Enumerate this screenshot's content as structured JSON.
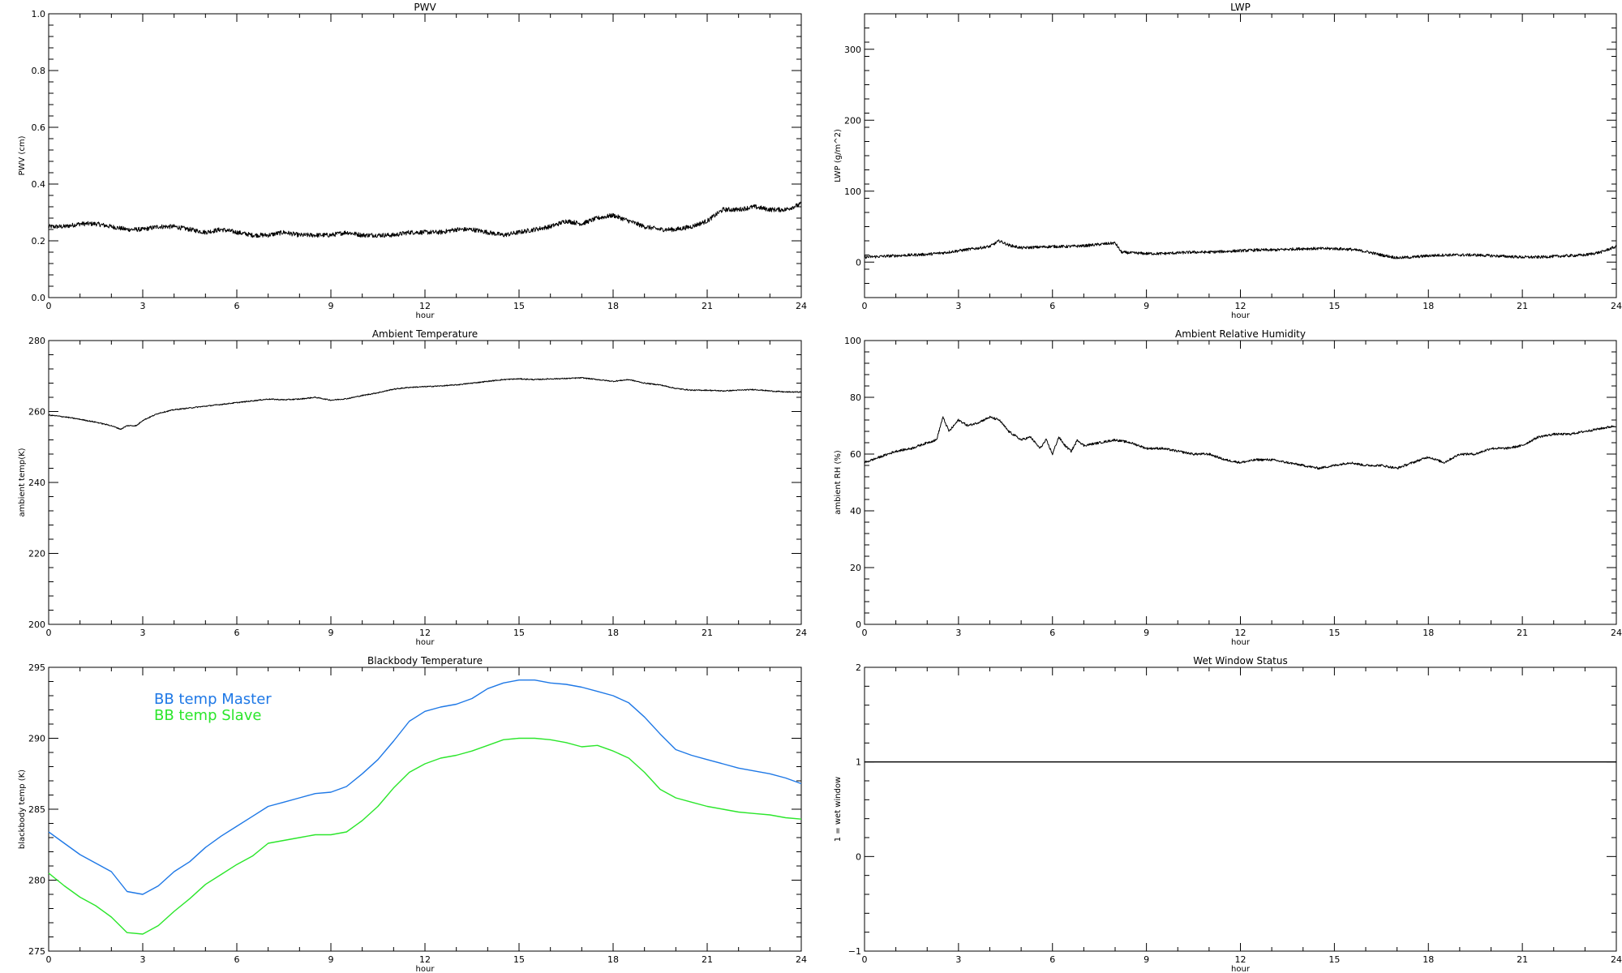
{
  "chart_data": [
    {
      "id": "pwv",
      "type": "line",
      "title": "PWV",
      "xlabel": "hour",
      "ylabel": "PWV (cm)",
      "xlim": [
        0,
        24
      ],
      "ylim": [
        0.0,
        1.0
      ],
      "xticks": [
        0,
        3,
        6,
        9,
        12,
        15,
        18,
        21,
        24
      ],
      "yticks": [
        0.0,
        0.2,
        0.4,
        0.6,
        0.8,
        1.0
      ],
      "ytick_labels": [
        "0.0",
        "0.2",
        "0.4",
        "0.6",
        "0.8",
        "1.0"
      ],
      "noise": 0.008,
      "series": [
        {
          "color": "#000000",
          "x": [
            0,
            0.5,
            1,
            1.5,
            2,
            2.5,
            3,
            3.5,
            4,
            4.5,
            5,
            5.5,
            6,
            6.5,
            7,
            7.5,
            8,
            8.5,
            9,
            9.5,
            10,
            10.5,
            11,
            11.5,
            12,
            12.5,
            13,
            13.5,
            14,
            14.5,
            15,
            15.5,
            16,
            16.5,
            17,
            17.5,
            18,
            18.5,
            19,
            19.5,
            20,
            20.5,
            21,
            21.5,
            22,
            22.5,
            23,
            23.5,
            24
          ],
          "y": [
            0.25,
            0.25,
            0.26,
            0.26,
            0.25,
            0.24,
            0.24,
            0.25,
            0.25,
            0.24,
            0.23,
            0.24,
            0.23,
            0.22,
            0.22,
            0.23,
            0.22,
            0.22,
            0.22,
            0.23,
            0.22,
            0.22,
            0.22,
            0.23,
            0.23,
            0.23,
            0.24,
            0.24,
            0.23,
            0.22,
            0.23,
            0.24,
            0.25,
            0.27,
            0.26,
            0.28,
            0.29,
            0.27,
            0.25,
            0.24,
            0.24,
            0.25,
            0.27,
            0.31,
            0.31,
            0.32,
            0.31,
            0.31,
            0.33
          ]
        }
      ]
    },
    {
      "id": "lwp",
      "type": "line",
      "title": "LWP",
      "xlabel": "hour",
      "ylabel": "LWP (g/m^2)",
      "xlim": [
        0,
        24
      ],
      "ylim": [
        -50,
        350
      ],
      "xticks": [
        0,
        3,
        6,
        9,
        12,
        15,
        18,
        21,
        24
      ],
      "yticks": [
        0,
        100,
        200,
        300
      ],
      "ytick_labels": [
        "0",
        "100",
        "200",
        "300"
      ],
      "noise": 2,
      "series": [
        {
          "color": "#000000",
          "x": [
            0,
            0.5,
            1,
            1.5,
            2,
            2.5,
            3,
            3.5,
            4,
            4.3,
            4.6,
            5,
            5.5,
            6,
            6.5,
            7,
            7.5,
            8,
            8.2,
            8.5,
            9,
            9.5,
            10,
            10.5,
            11,
            11.5,
            12,
            12.5,
            13,
            13.5,
            14,
            14.5,
            15,
            15.5,
            16,
            16.5,
            17,
            17.5,
            18,
            18.5,
            19,
            19.5,
            20,
            20.5,
            21,
            21.5,
            22,
            22.5,
            23,
            23.5,
            24
          ],
          "y": [
            7,
            8,
            9,
            10,
            11,
            13,
            16,
            19,
            22,
            30,
            24,
            20,
            21,
            22,
            22,
            23,
            25,
            27,
            14,
            13,
            12,
            12,
            13,
            14,
            14,
            15,
            16,
            17,
            17,
            18,
            19,
            19,
            19,
            18,
            15,
            10,
            6,
            7,
            9,
            10,
            10,
            10,
            9,
            8,
            7,
            7,
            8,
            9,
            10,
            14,
            22
          ]
        }
      ]
    },
    {
      "id": "ambient-temperature",
      "type": "line",
      "title": "Ambient Temperature",
      "xlabel": "hour",
      "ylabel": "ambient temp(K)",
      "xlim": [
        0,
        24
      ],
      "ylim": [
        200,
        280
      ],
      "xticks": [
        0,
        3,
        6,
        9,
        12,
        15,
        18,
        21,
        24
      ],
      "yticks": [
        200,
        220,
        240,
        260,
        280
      ],
      "ytick_labels": [
        "200",
        "220",
        "240",
        "260",
        "280"
      ],
      "noise": 0.15,
      "series": [
        {
          "color": "#000000",
          "x": [
            0,
            0.5,
            1,
            1.5,
            2,
            2.3,
            2.5,
            2.8,
            3,
            3.5,
            4,
            4.5,
            5,
            5.5,
            6,
            6.5,
            7,
            7.5,
            8,
            8.5,
            9,
            9.5,
            10,
            10.5,
            11,
            11.5,
            12,
            12.5,
            13,
            13.5,
            14,
            14.5,
            15,
            15.5,
            16,
            16.5,
            17,
            17.5,
            18,
            18.5,
            19,
            19.5,
            20,
            20.5,
            21,
            21.5,
            22,
            22.5,
            23,
            23.5,
            24
          ],
          "y": [
            259,
            258.5,
            257.8,
            257,
            256,
            255,
            256,
            256,
            257.5,
            259.5,
            260.5,
            261,
            261.5,
            262,
            262.5,
            263,
            263.5,
            263.3,
            263.5,
            264,
            263.2,
            263.6,
            264.5,
            265.3,
            266.3,
            266.8,
            267,
            267.2,
            267.5,
            268,
            268.5,
            269,
            269.2,
            269,
            269.2,
            269.3,
            269.5,
            269,
            268.5,
            269,
            268,
            267.5,
            266.5,
            266,
            266,
            265.8,
            266,
            266.2,
            265.8,
            265.5,
            265.5
          ]
        }
      ]
    },
    {
      "id": "ambient-relative-humidity",
      "type": "line",
      "title": "Ambient Relative Humidity",
      "xlabel": "hour",
      "ylabel": "ambient RH (%)",
      "xlim": [
        0,
        24
      ],
      "ylim": [
        0,
        100
      ],
      "xticks": [
        0,
        3,
        6,
        9,
        12,
        15,
        18,
        21,
        24
      ],
      "yticks": [
        0,
        20,
        40,
        60,
        80,
        100
      ],
      "ytick_labels": [
        "0",
        "20",
        "40",
        "60",
        "80",
        "100"
      ],
      "noise": 0.4,
      "series": [
        {
          "color": "#000000",
          "x": [
            0,
            0.5,
            1,
            1.5,
            2,
            2.3,
            2.5,
            2.7,
            3,
            3.3,
            3.6,
            4,
            4.3,
            4.6,
            5,
            5.3,
            5.6,
            5.8,
            6,
            6.2,
            6.4,
            6.6,
            6.8,
            7,
            7.5,
            8,
            8.5,
            9,
            9.5,
            10,
            10.5,
            11,
            11.5,
            12,
            12.5,
            13,
            13.5,
            14,
            14.5,
            15,
            15.5,
            16,
            16.5,
            17,
            17.5,
            18,
            18.5,
            19,
            19.5,
            20,
            20.5,
            21,
            21.5,
            22,
            22.5,
            23,
            23.5,
            24
          ],
          "y": [
            57,
            59,
            61,
            62,
            64,
            65,
            73,
            68,
            72,
            70,
            71,
            73,
            72,
            68,
            65,
            66,
            62,
            65,
            60,
            66,
            63,
            61,
            65,
            63,
            64,
            65,
            64,
            62,
            62,
            61,
            60,
            60,
            58,
            57,
            58,
            58,
            57,
            56,
            55,
            56,
            57,
            56,
            56,
            55,
            57,
            59,
            57,
            60,
            60,
            62,
            62,
            63,
            66,
            67,
            67,
            68,
            69,
            70
          ]
        }
      ]
    },
    {
      "id": "blackbody-temperature",
      "type": "line",
      "title": "Blackbody Temperature",
      "xlabel": "hour",
      "ylabel": "blackbody temp (K)",
      "xlim": [
        0,
        24
      ],
      "ylim": [
        275,
        295
      ],
      "xticks": [
        0,
        3,
        6,
        9,
        12,
        15,
        18,
        21,
        24
      ],
      "yticks": [
        275,
        280,
        285,
        290,
        295
      ],
      "ytick_labels": [
        "275",
        "280",
        "285",
        "290",
        "295"
      ],
      "noise": 0,
      "legend": "top-left",
      "series": [
        {
          "name": "BB temp Master",
          "color": "#1e78e6",
          "x": [
            0,
            0.5,
            1,
            1.5,
            2,
            2.5,
            3,
            3.5,
            4,
            4.5,
            5,
            5.5,
            6,
            6.5,
            7,
            7.5,
            8,
            8.5,
            9,
            9.5,
            10,
            10.5,
            11,
            11.5,
            12,
            12.5,
            13,
            13.5,
            14,
            14.5,
            15,
            15.5,
            16,
            16.5,
            17,
            17.5,
            18,
            18.5,
            19,
            19.5,
            20,
            20.5,
            21,
            21.5,
            22,
            22.5,
            23,
            23.5,
            24
          ],
          "y": [
            283.4,
            282.6,
            281.8,
            281.2,
            280.6,
            279.2,
            279.0,
            279.6,
            280.6,
            281.3,
            282.3,
            283.1,
            283.8,
            284.5,
            285.2,
            285.5,
            285.8,
            286.1,
            286.2,
            286.6,
            287.5,
            288.5,
            289.8,
            291.2,
            291.9,
            292.2,
            292.4,
            292.8,
            293.5,
            293.9,
            294.1,
            294.1,
            293.9,
            293.8,
            293.6,
            293.3,
            293.0,
            292.5,
            291.5,
            290.3,
            289.2,
            288.8,
            288.5,
            288.2,
            287.9,
            287.7,
            287.5,
            287.2,
            286.8
          ]
        },
        {
          "name": "BB temp Slave",
          "color": "#2be62b",
          "x": [
            0,
            0.5,
            1,
            1.5,
            2,
            2.5,
            3,
            3.5,
            4,
            4.5,
            5,
            5.5,
            6,
            6.5,
            7,
            7.5,
            8,
            8.5,
            9,
            9.5,
            10,
            10.5,
            11,
            11.5,
            12,
            12.5,
            13,
            13.5,
            14,
            14.5,
            15,
            15.5,
            16,
            16.5,
            17,
            17.5,
            18,
            18.5,
            19,
            19.5,
            20,
            20.5,
            21,
            21.5,
            22,
            22.5,
            23,
            23.5,
            24
          ],
          "y": [
            280.5,
            279.6,
            278.8,
            278.2,
            277.4,
            276.3,
            276.2,
            276.8,
            277.8,
            278.7,
            279.7,
            280.4,
            281.1,
            281.7,
            282.6,
            282.8,
            283.0,
            283.2,
            283.2,
            283.4,
            284.2,
            285.2,
            286.5,
            287.6,
            288.2,
            288.6,
            288.8,
            289.1,
            289.5,
            289.9,
            290.0,
            290.0,
            289.9,
            289.7,
            289.4,
            289.5,
            289.1,
            288.6,
            287.6,
            286.4,
            285.8,
            285.5,
            285.2,
            285.0,
            284.8,
            284.7,
            284.6,
            284.4,
            284.3
          ]
        }
      ]
    },
    {
      "id": "wet-window-status",
      "type": "line",
      "title": "Wet Window Status",
      "xlabel": "hour",
      "ylabel": "1 = wet window",
      "xlim": [
        0,
        24
      ],
      "ylim": [
        -1,
        2
      ],
      "xticks": [
        0,
        3,
        6,
        9,
        12,
        15,
        18,
        21,
        24
      ],
      "yticks": [
        -1,
        0,
        1,
        2
      ],
      "ytick_labels": [
        "−1",
        "0",
        "1",
        "2"
      ],
      "noise": 0,
      "series": [
        {
          "color": "#000000",
          "x": [
            0,
            24
          ],
          "y": [
            1,
            1
          ]
        }
      ]
    }
  ]
}
